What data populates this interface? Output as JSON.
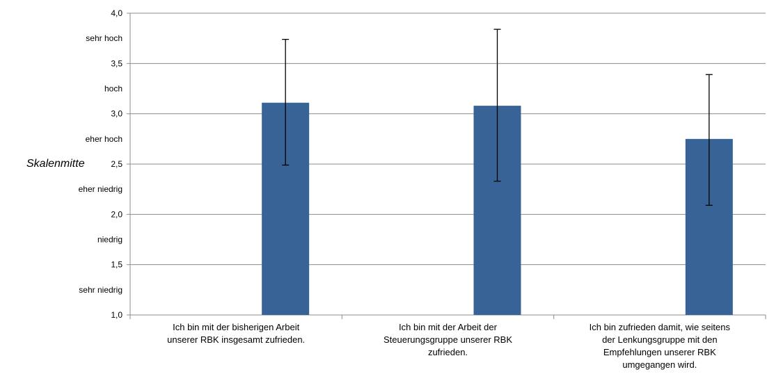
{
  "chart_data": {
    "type": "bar",
    "categories": [
      [
        "Ich bin mit der bisherigen Arbeit",
        "unserer RBK insgesamt zufrieden."
      ],
      [
        "Ich bin mit der Arbeit der",
        "Steuerungsgruppe unserer RBK",
        "zufrieden."
      ],
      [
        "Ich bin zufrieden damit, wie seitens",
        "der Lenkungsgruppe mit den",
        "Empfehlungen unserer RBK",
        "umgegangen wird."
      ]
    ],
    "values": [
      3.11,
      3.08,
      2.75
    ],
    "error_low": [
      2.49,
      2.33,
      2.09
    ],
    "error_high": [
      3.74,
      3.84,
      3.39
    ],
    "ylim": [
      1.0,
      4.0
    ],
    "y_ticks": [
      "1,0",
      "1,5",
      "2,0",
      "2,5",
      "3,0",
      "3,5",
      "4,0"
    ],
    "y_tick_values": [
      1.0,
      1.5,
      2.0,
      2.5,
      3.0,
      3.5,
      4.0
    ],
    "scale_labels": [
      "sehr niedrig",
      "niedrig",
      "eher niedrig",
      "eher hoch",
      "hoch",
      "sehr hoch"
    ],
    "scale_label_values": [
      1.25,
      1.75,
      2.25,
      2.75,
      3.25,
      3.75
    ],
    "side_label": "Skalenmitte",
    "grid": true,
    "bar_color": "#386396",
    "grid_color": "#8c8c8c"
  }
}
